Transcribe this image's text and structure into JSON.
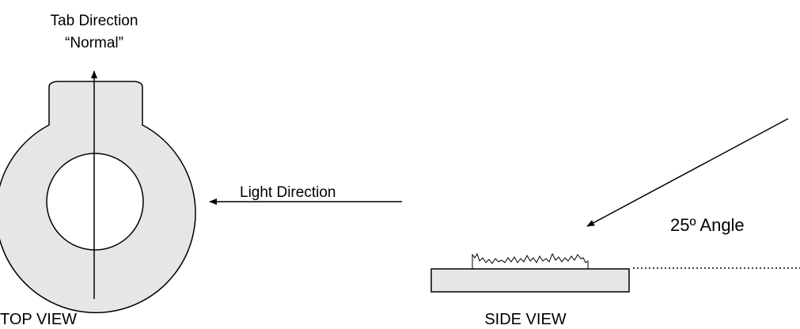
{
  "labels": {
    "tab_direction_line1": "Tab Direction",
    "tab_direction_line2": "“Normal”",
    "light_direction": "Light Direction",
    "angle": "25º Angle",
    "top_view": "TOP VIEW",
    "side_view": "SIDE VIEW"
  },
  "colors": {
    "part_fill": "#e6e6e6",
    "stroke": "#000000",
    "background": "#ffffff"
  }
}
